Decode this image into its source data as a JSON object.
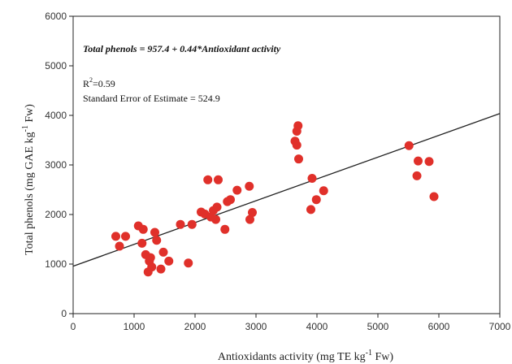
{
  "chart_data": {
    "type": "scatter",
    "xlabel": "Antioxidants activity   (mg TE kg",
    "xlabel_sup": "-1",
    "xlabel_tail": " Fw)",
    "ylabel": "Total phenols   (mg GAE kg",
    "ylabel_sup": "-1",
    "ylabel_tail": " Fw)",
    "xlim": [
      0,
      7000
    ],
    "ylim": [
      0,
      6000
    ],
    "xticks": [
      0,
      1000,
      2000,
      3000,
      4000,
      5000,
      6000,
      7000
    ],
    "yticks": [
      0,
      1000,
      2000,
      3000,
      4000,
      5000,
      6000
    ],
    "grid": false,
    "point_color": "#e0302a",
    "line_color": "#222222",
    "regression": {
      "intercept": 957.4,
      "slope": 0.44
    },
    "annotations": {
      "equation": "Total phenols = 957.4 + 0.44*Antioxidant activity",
      "r2_prefix": "R",
      "r2_sup": "2",
      "r2_value": "=0.59",
      "see": "Standard Error of Estimate = 524.9"
    },
    "points": [
      {
        "x": 700,
        "y": 1560
      },
      {
        "x": 760,
        "y": 1360
      },
      {
        "x": 860,
        "y": 1560
      },
      {
        "x": 1070,
        "y": 1770
      },
      {
        "x": 1130,
        "y": 1420
      },
      {
        "x": 1150,
        "y": 1700
      },
      {
        "x": 1190,
        "y": 1190
      },
      {
        "x": 1230,
        "y": 840
      },
      {
        "x": 1250,
        "y": 1060
      },
      {
        "x": 1270,
        "y": 1130
      },
      {
        "x": 1290,
        "y": 940
      },
      {
        "x": 1340,
        "y": 1640
      },
      {
        "x": 1370,
        "y": 1480
      },
      {
        "x": 1440,
        "y": 900
      },
      {
        "x": 1480,
        "y": 1240
      },
      {
        "x": 1570,
        "y": 1060
      },
      {
        "x": 1760,
        "y": 1800
      },
      {
        "x": 1890,
        "y": 1020
      },
      {
        "x": 1950,
        "y": 1800
      },
      {
        "x": 2100,
        "y": 2050
      },
      {
        "x": 2160,
        "y": 2010
      },
      {
        "x": 2210,
        "y": 2700
      },
      {
        "x": 2260,
        "y": 1950
      },
      {
        "x": 2300,
        "y": 2080
      },
      {
        "x": 2340,
        "y": 1900
      },
      {
        "x": 2360,
        "y": 2150
      },
      {
        "x": 2380,
        "y": 2700
      },
      {
        "x": 2490,
        "y": 1700
      },
      {
        "x": 2530,
        "y": 2260
      },
      {
        "x": 2580,
        "y": 2300
      },
      {
        "x": 2690,
        "y": 2490
      },
      {
        "x": 2890,
        "y": 2570
      },
      {
        "x": 2900,
        "y": 1900
      },
      {
        "x": 2940,
        "y": 2040
      },
      {
        "x": 3640,
        "y": 3480
      },
      {
        "x": 3670,
        "y": 3400
      },
      {
        "x": 3670,
        "y": 3680
      },
      {
        "x": 3690,
        "y": 3790
      },
      {
        "x": 3700,
        "y": 3120
      },
      {
        "x": 3900,
        "y": 2100
      },
      {
        "x": 3920,
        "y": 2730
      },
      {
        "x": 3990,
        "y": 2300
      },
      {
        "x": 4110,
        "y": 2480
      },
      {
        "x": 5510,
        "y": 3390
      },
      {
        "x": 5640,
        "y": 2780
      },
      {
        "x": 5660,
        "y": 3080
      },
      {
        "x": 5840,
        "y": 3070
      },
      {
        "x": 5920,
        "y": 2360
      }
    ]
  }
}
